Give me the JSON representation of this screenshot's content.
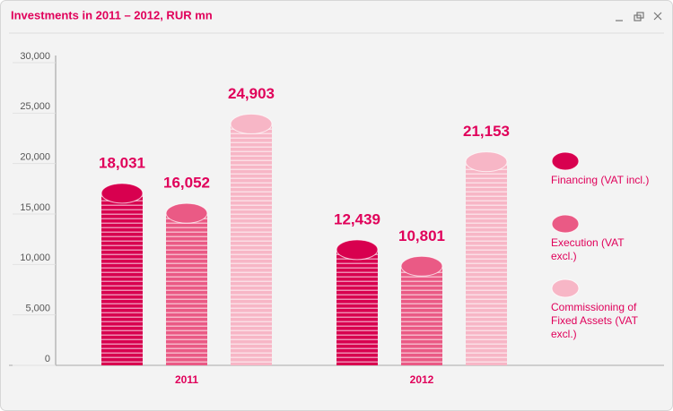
{
  "chart_data": {
    "type": "bar",
    "title": "Investments in 2011 – 2012, RUR mn",
    "categories": [
      "2011",
      "2012"
    ],
    "series": [
      {
        "name": "Financing (VAT incl.)",
        "color": "#d8004f",
        "values": [
          18031,
          12439
        ],
        "value_labels": [
          "18,031",
          "12,439"
        ]
      },
      {
        "name": "Execution (VAT excl.)",
        "color": "#ea5a85",
        "values": [
          16052,
          10801
        ],
        "value_labels": [
          "16,052",
          "10,801"
        ]
      },
      {
        "name": "Commissioning of Fixed Assets (VAT excl.)",
        "color": "#f7b6c6",
        "values": [
          24903,
          21153
        ],
        "value_labels": [
          "24,903",
          "21,153"
        ]
      }
    ],
    "ylim": [
      0,
      30000
    ],
    "yticks": [
      0,
      {
        "value": 5000,
        "label": "5,000"
      },
      {
        "value": 10000,
        "label": "10,000"
      },
      {
        "value": 15000,
        "label": "15,000"
      },
      {
        "value": 20000,
        "label": "20,000"
      },
      {
        "value": 25000,
        "label": "25,000"
      },
      {
        "value": 30000,
        "label": "30,000"
      }
    ]
  }
}
